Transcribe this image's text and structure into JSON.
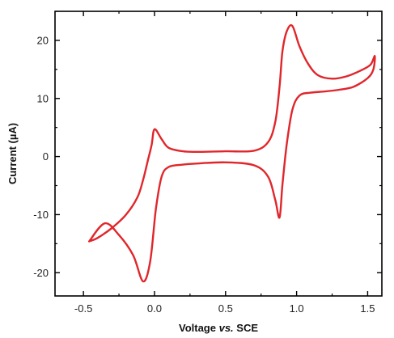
{
  "chart_data": {
    "type": "line",
    "title": "",
    "xlabel_parts": [
      "Voltage ",
      "vs.",
      " SCE"
    ],
    "ylabel": "Current (µA)",
    "xlim": [
      -0.7,
      1.6
    ],
    "ylim": [
      -24,
      25
    ],
    "x_ticks": [
      -0.5,
      0.0,
      0.5,
      1.0,
      1.5
    ],
    "x_tick_labels": [
      "-0.5",
      "0.0",
      "0.5",
      "1.0",
      "1.5"
    ],
    "y_ticks": [
      -20,
      -10,
      0,
      10,
      20
    ],
    "y_tick_labels": [
      "-20",
      "-10",
      "0",
      "10",
      "20"
    ],
    "grid": false,
    "line_color": "#e0262b",
    "series": [
      {
        "x": [
          -0.46,
          -0.4,
          -0.3,
          -0.2,
          -0.12,
          -0.08,
          -0.05,
          -0.02,
          0.0,
          0.05,
          0.1,
          0.2,
          0.3,
          0.5,
          0.7,
          0.8,
          0.85,
          0.88,
          0.9,
          0.93,
          0.97,
          1.02,
          1.08,
          1.15,
          1.25,
          1.35,
          1.45,
          1.52,
          1.55,
          1.54,
          1.5,
          1.4,
          1.3,
          1.2,
          1.1,
          1.02,
          0.97,
          0.93,
          0.9,
          0.88,
          0.85,
          0.8,
          0.7,
          0.5,
          0.3,
          0.2,
          0.1,
          0.05,
          0.01,
          -0.03,
          -0.08,
          -0.15,
          -0.25,
          -0.35,
          -0.46
        ],
        "y": [
          -14.6,
          -14.0,
          -12.3,
          -10.0,
          -7.0,
          -4.0,
          -1.0,
          2.0,
          4.7,
          3.0,
          1.5,
          0.9,
          0.8,
          0.9,
          1.0,
          2.5,
          6.0,
          12.0,
          18.0,
          21.5,
          22.5,
          19.0,
          16.0,
          14.0,
          13.4,
          13.8,
          14.8,
          15.8,
          17.3,
          15.0,
          13.5,
          12.0,
          11.5,
          11.2,
          11.0,
          10.5,
          8.0,
          2.0,
          -5.0,
          -10.5,
          -7.5,
          -3.5,
          -1.5,
          -1.0,
          -1.2,
          -1.4,
          -1.8,
          -3.5,
          -9.0,
          -18.0,
          -21.5,
          -17.0,
          -13.5,
          -11.5,
          -14.6
        ]
      }
    ]
  }
}
